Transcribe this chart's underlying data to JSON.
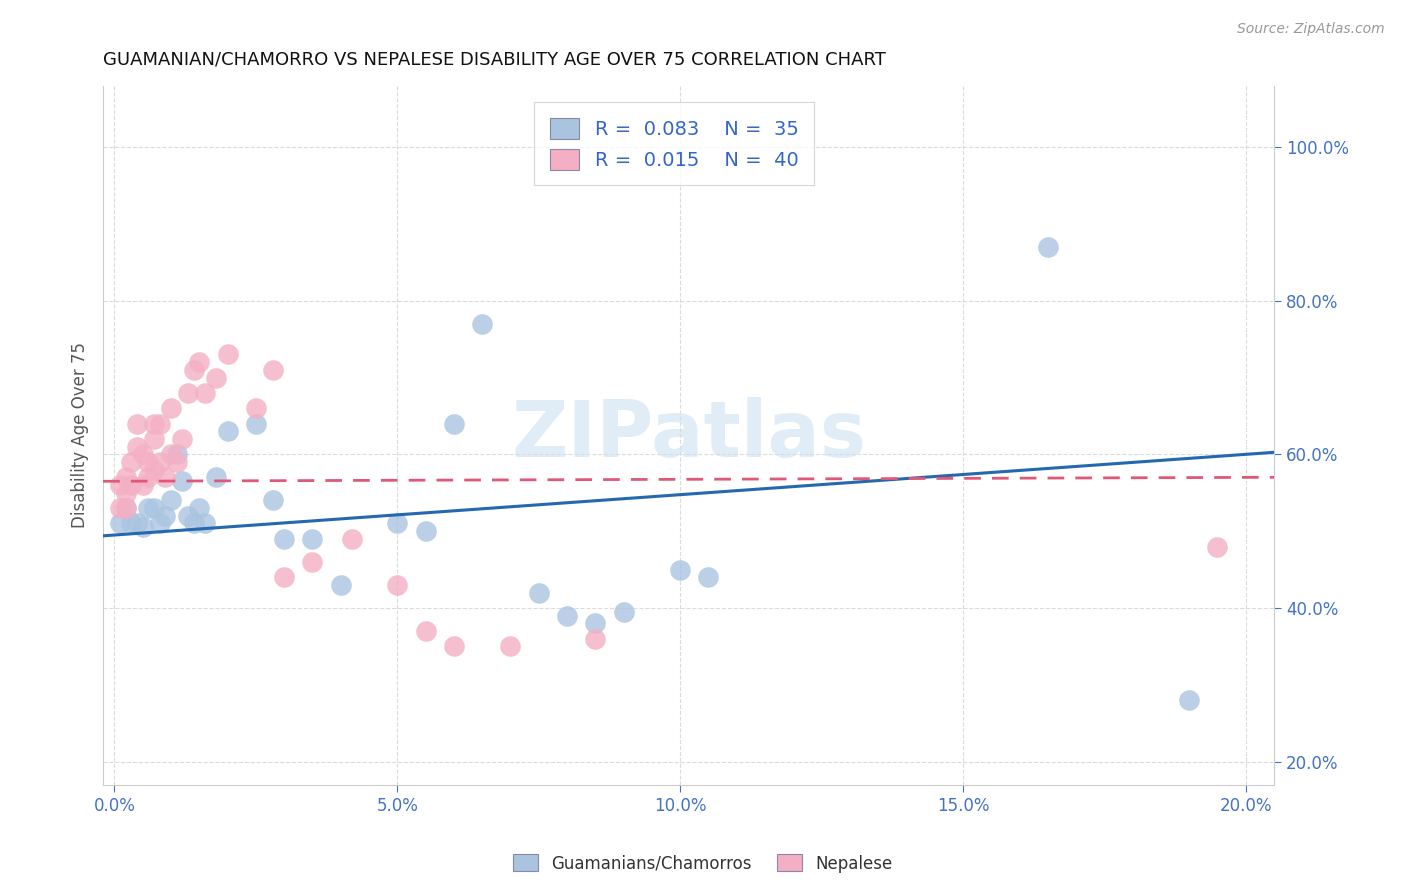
{
  "title": "GUAMANIAN/CHAMORRO VS NEPALESE DISABILITY AGE OVER 75 CORRELATION CHART",
  "source": "Source: ZipAtlas.com",
  "xlabel_tick_vals": [
    0.0,
    0.05,
    0.1,
    0.15,
    0.2
  ],
  "xlabel_ticks": [
    "0.0%",
    "5.0%",
    "10.0%",
    "15.0%",
    "20.0%"
  ],
  "ylabel": "Disability Age Over 75",
  "ylabel_tick_vals": [
    0.2,
    0.4,
    0.6,
    0.8,
    1.0
  ],
  "ylabel_ticks": [
    "20.0%",
    "40.0%",
    "60.0%",
    "80.0%",
    "100.0%"
  ],
  "xlim": [
    -0.002,
    0.205
  ],
  "ylim": [
    0.17,
    1.08
  ],
  "legend_R_blue": "0.083",
  "legend_N_blue": "35",
  "legend_R_pink": "0.015",
  "legend_N_pink": "40",
  "blue_color": "#aac4e0",
  "pink_color": "#f4afc4",
  "blue_line_color": "#2468b0",
  "pink_line_color": "#e05878",
  "background_color": "#ffffff",
  "grid_color": "#cccccc",
  "watermark": "ZIPatlas",
  "blue_scatter_x": [
    0.001,
    0.002,
    0.003,
    0.004,
    0.005,
    0.006,
    0.007,
    0.008,
    0.009,
    0.01,
    0.011,
    0.012,
    0.013,
    0.014,
    0.015,
    0.016,
    0.018,
    0.02,
    0.025,
    0.028,
    0.03,
    0.035,
    0.04,
    0.05,
    0.055,
    0.06,
    0.065,
    0.075,
    0.08,
    0.085,
    0.09,
    0.1,
    0.105,
    0.165,
    0.19
  ],
  "blue_scatter_y": [
    0.51,
    0.53,
    0.51,
    0.51,
    0.505,
    0.53,
    0.53,
    0.51,
    0.52,
    0.54,
    0.6,
    0.565,
    0.52,
    0.51,
    0.53,
    0.51,
    0.57,
    0.63,
    0.64,
    0.54,
    0.49,
    0.49,
    0.43,
    0.51,
    0.5,
    0.64,
    0.77,
    0.42,
    0.39,
    0.38,
    0.395,
    0.45,
    0.44,
    0.87,
    0.28
  ],
  "pink_scatter_x": [
    0.001,
    0.001,
    0.002,
    0.002,
    0.002,
    0.003,
    0.003,
    0.004,
    0.004,
    0.005,
    0.005,
    0.006,
    0.006,
    0.007,
    0.007,
    0.007,
    0.008,
    0.008,
    0.009,
    0.01,
    0.01,
    0.011,
    0.012,
    0.013,
    0.014,
    0.015,
    0.016,
    0.018,
    0.02,
    0.025,
    0.028,
    0.03,
    0.035,
    0.042,
    0.05,
    0.055,
    0.06,
    0.07,
    0.085,
    0.195
  ],
  "pink_scatter_y": [
    0.53,
    0.56,
    0.53,
    0.55,
    0.57,
    0.56,
    0.59,
    0.61,
    0.64,
    0.56,
    0.6,
    0.57,
    0.59,
    0.58,
    0.62,
    0.64,
    0.59,
    0.64,
    0.57,
    0.6,
    0.66,
    0.59,
    0.62,
    0.68,
    0.71,
    0.72,
    0.68,
    0.7,
    0.73,
    0.66,
    0.71,
    0.44,
    0.46,
    0.49,
    0.43,
    0.37,
    0.35,
    0.35,
    0.36,
    0.48
  ]
}
